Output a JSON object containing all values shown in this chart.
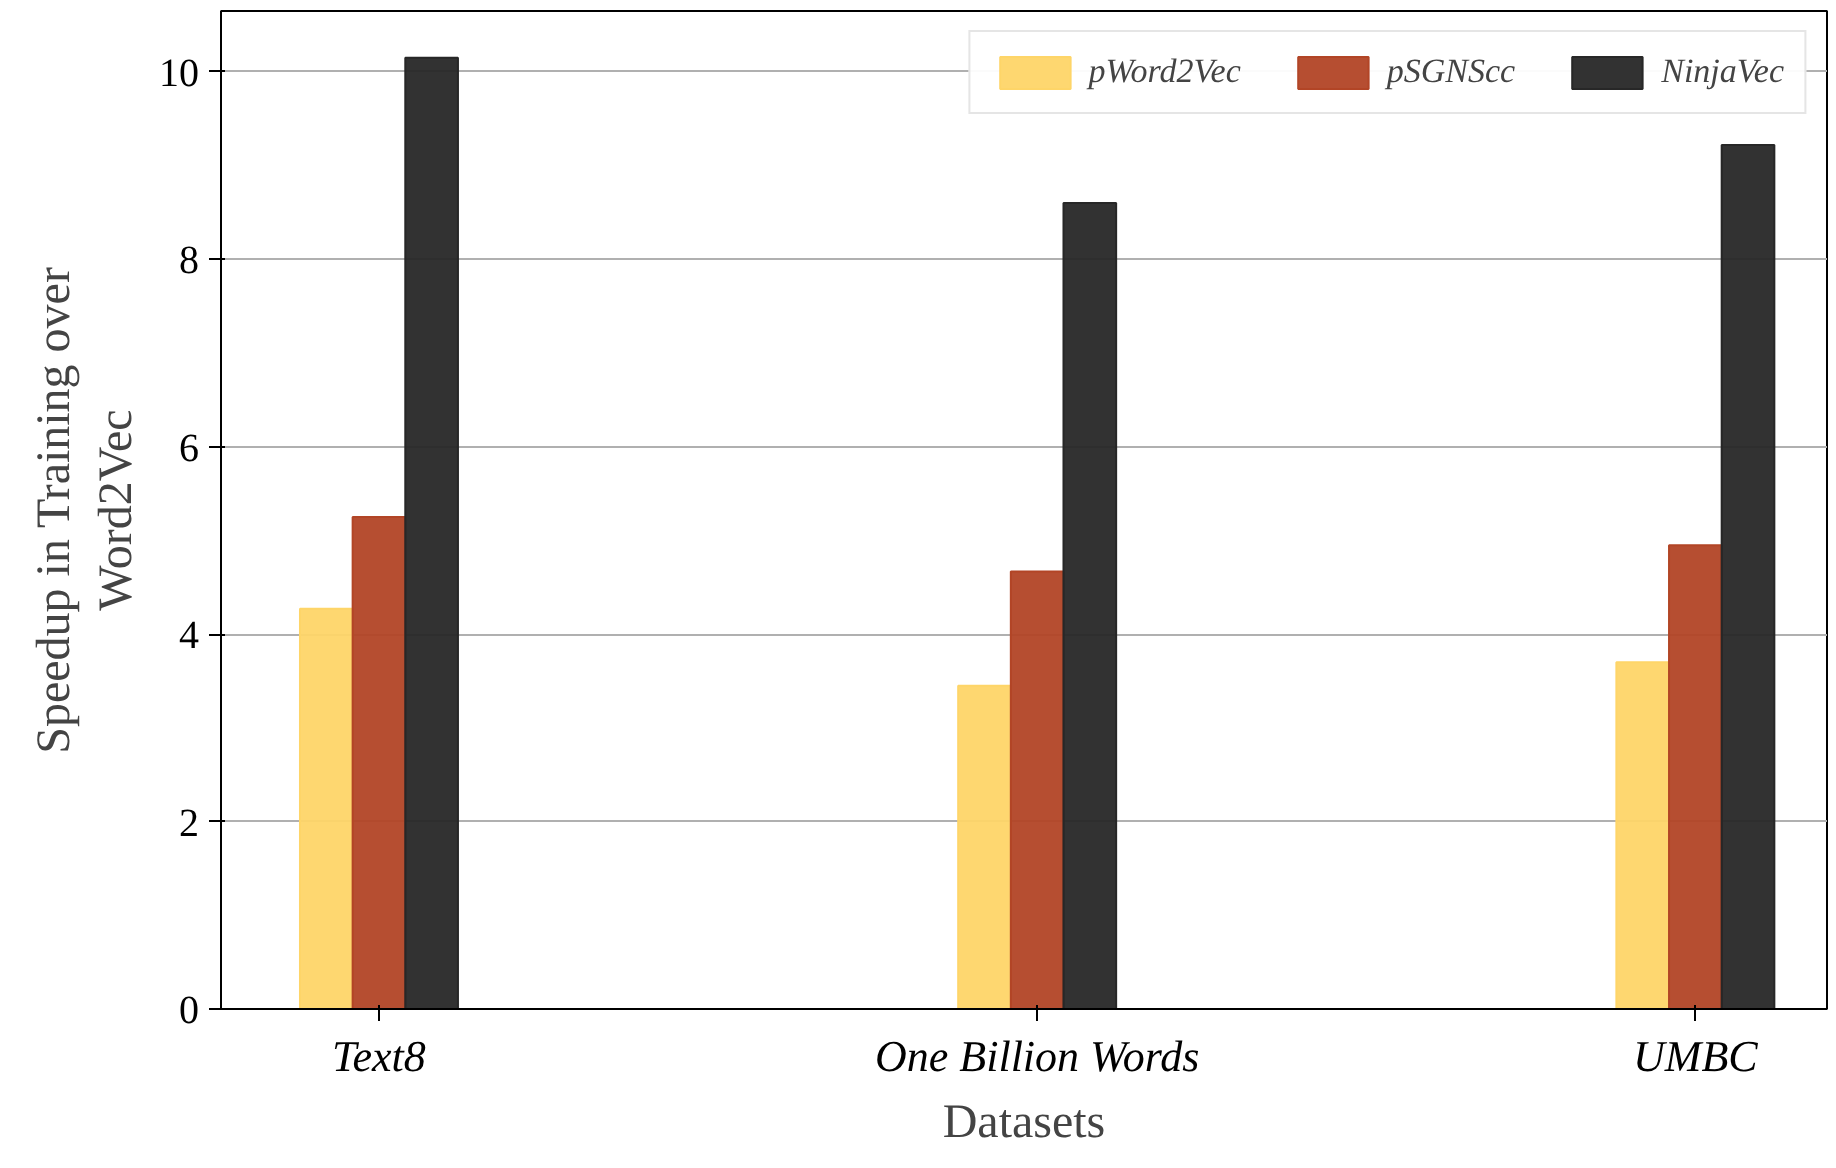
{
  "chart_data": {
    "type": "bar",
    "xlabel": "Datasets",
    "ylabel": "Speedup in Training over\nWord2Vec",
    "categories": [
      "Text8",
      "One Billion Words",
      "UMBC"
    ],
    "series": [
      {
        "name": "pWord2Vec",
        "color": "#fed568",
        "values": [
          4.27,
          3.45,
          3.7
        ]
      },
      {
        "name": "pSGNScc",
        "color": "#b24526",
        "values": [
          5.25,
          4.67,
          4.95
        ]
      },
      {
        "name": "NinjaVec",
        "color": "#272727",
        "values": [
          10.15,
          8.6,
          9.22
        ]
      }
    ],
    "ylim": [
      0,
      10.65
    ],
    "yticks": [
      0,
      2,
      4,
      6,
      8,
      10
    ],
    "grid": "y",
    "legend": "top right"
  }
}
